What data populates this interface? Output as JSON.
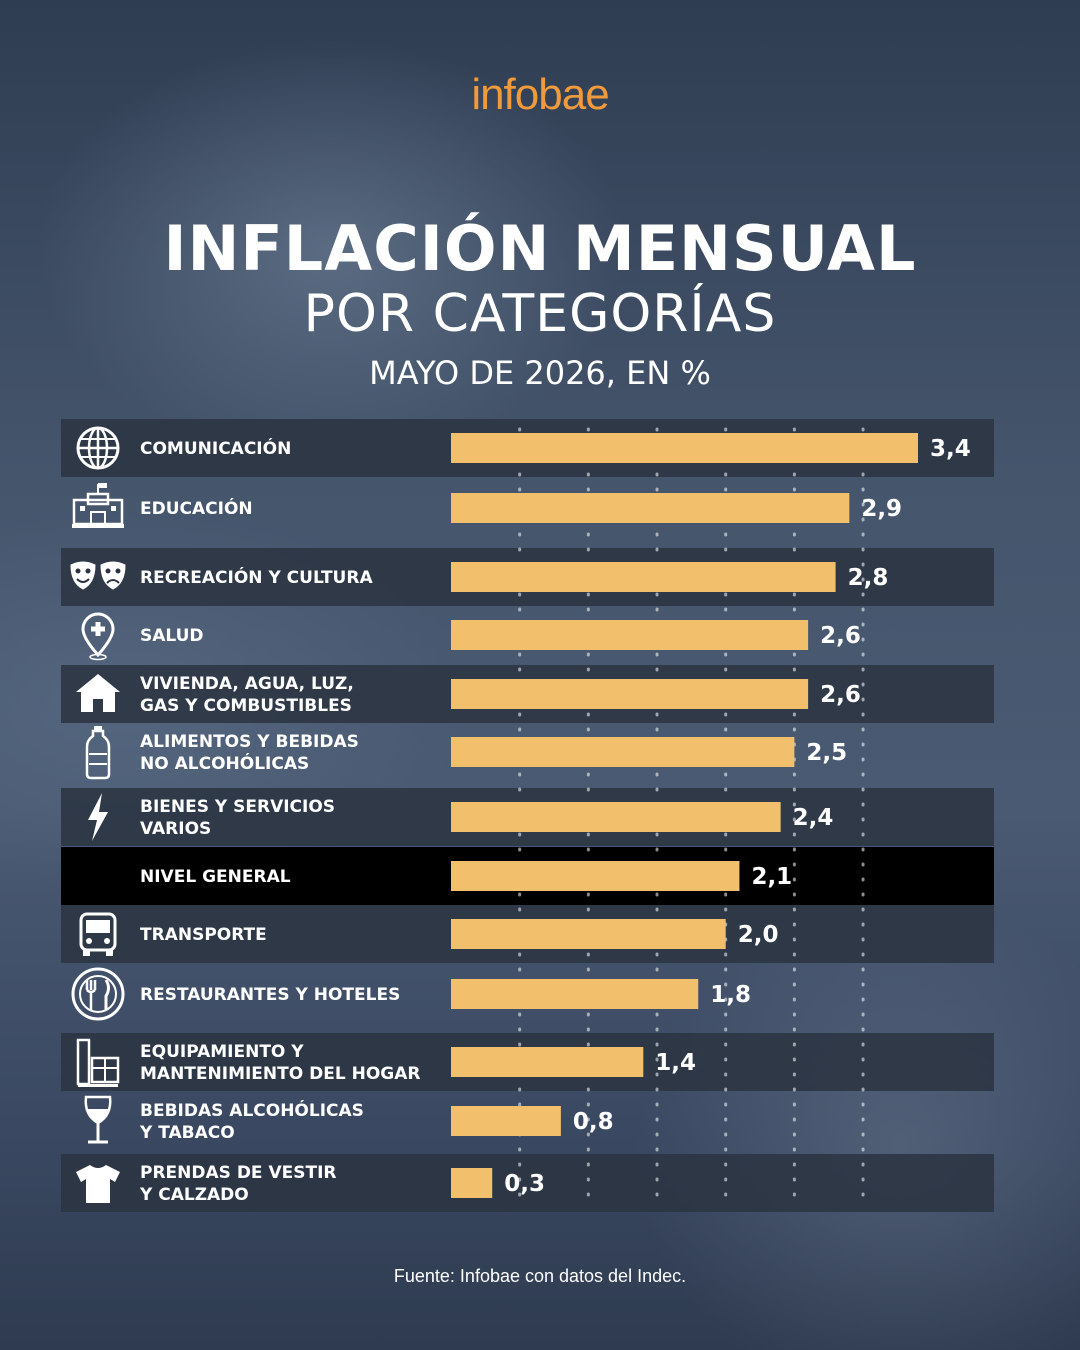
{
  "brand": {
    "name": "infobae",
    "color": "#f09a3c"
  },
  "header": {
    "title": "INFLACIÓN MENSUAL",
    "subtitle": "POR CATEGORÍAS",
    "period": "MAYO DE 2026, EN %"
  },
  "footer": {
    "source": "Fuente: Infobae con datos del Indec."
  },
  "colors": {
    "bar": "#f2bf6c",
    "row_dark": "#2b3442",
    "row_highlight": "#000000",
    "gridline": "#ffffff"
  },
  "chart_data": {
    "type": "bar",
    "orientation": "horizontal",
    "unit": "%",
    "xlim": [
      0,
      3.4
    ],
    "grid": true,
    "categories": [
      {
        "label": [
          "COMUNICACIÓN"
        ],
        "value": 3.4,
        "value_label": "3,4",
        "icon": "globe-icon",
        "highlight": false
      },
      {
        "label": [
          "EDUCACIÓN"
        ],
        "value": 2.9,
        "value_label": "2,9",
        "icon": "school-icon",
        "highlight": false
      },
      {
        "label": [
          "RECREACIÓN Y CULTURA"
        ],
        "value": 2.8,
        "value_label": "2,8",
        "icon": "theater-masks-icon",
        "highlight": false
      },
      {
        "label": [
          "SALUD"
        ],
        "value": 2.6,
        "value_label": "2,6",
        "icon": "health-pin-icon",
        "highlight": false
      },
      {
        "label": [
          "VIVIENDA, AGUA, LUZ,",
          "GAS Y COMBUSTIBLES"
        ],
        "value": 2.6,
        "value_label": "2,6",
        "icon": "house-icon",
        "highlight": false
      },
      {
        "label": [
          "ALIMENTOS Y BEBIDAS",
          "NO ALCOHÓLICAS"
        ],
        "value": 2.5,
        "value_label": "2,5",
        "icon": "bottle-icon",
        "highlight": false
      },
      {
        "label": [
          "BIENES Y SERVICIOS",
          "VARIOS"
        ],
        "value": 2.4,
        "value_label": "2,4",
        "icon": "lightning-icon",
        "highlight": false
      },
      {
        "label": [
          "NIVEL GENERAL"
        ],
        "value": 2.1,
        "value_label": "2,1",
        "icon": "",
        "highlight": true
      },
      {
        "label": [
          "TRANSPORTE"
        ],
        "value": 2.0,
        "value_label": "2,0",
        "icon": "bus-icon",
        "highlight": false
      },
      {
        "label": [
          "RESTAURANTES Y HOTELES"
        ],
        "value": 1.8,
        "value_label": "1,8",
        "icon": "plate-icon",
        "highlight": false
      },
      {
        "label": [
          "EQUIPAMIENTO Y",
          "MANTENIMIENTO DEL HOGAR"
        ],
        "value": 1.4,
        "value_label": "1,4",
        "icon": "furniture-icon",
        "highlight": false
      },
      {
        "label": [
          "BEBIDAS ALCOHÓLICAS",
          "Y TABACO"
        ],
        "value": 0.8,
        "value_label": "0,8",
        "icon": "wine-glass-icon",
        "highlight": false
      },
      {
        "label": [
          "PRENDAS DE VESTIR",
          "Y CALZADO"
        ],
        "value": 0.3,
        "value_label": "0,3",
        "icon": "tshirt-icon",
        "highlight": false
      }
    ]
  }
}
